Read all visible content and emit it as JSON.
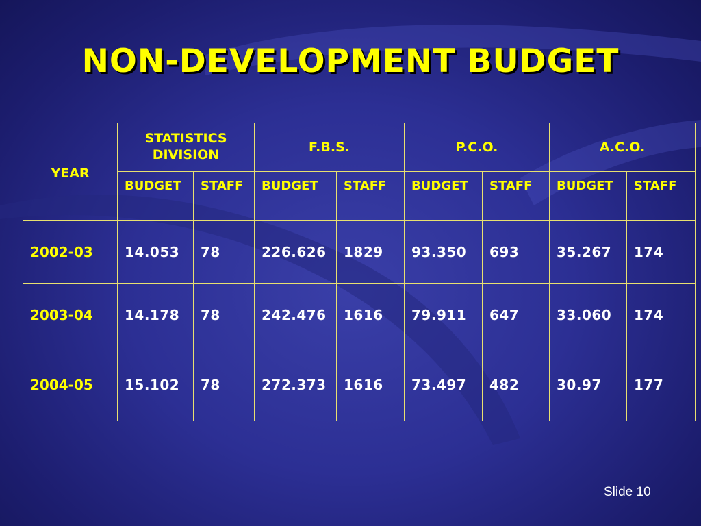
{
  "slide": {
    "title": "NON-DEVELOPMENT BUDGET",
    "slide_number": "Slide 10",
    "colors": {
      "title": "#ffff00",
      "header_text": "#ffff00",
      "value_text": "#ffffff",
      "grid": "#e8e070",
      "background": "#2c2f94"
    }
  },
  "table": {
    "year_header": "YEAR",
    "groups": [
      {
        "line1": "STATISTICS",
        "line2": "DIVISION"
      },
      {
        "line1": "F.B.S.",
        "line2": ""
      },
      {
        "line1": "P.C.O.",
        "line2": ""
      },
      {
        "line1": "A.C.O.",
        "line2": ""
      }
    ],
    "sub_budget": "BUDGET",
    "sub_staff": "STAFF",
    "rows": [
      {
        "year": "2002-03",
        "v": [
          "14.053",
          "78",
          "226.626",
          "1829",
          "93.350",
          "693",
          "35.267",
          "174"
        ]
      },
      {
        "year": "2003-04",
        "v": [
          "14.178",
          "78",
          "242.476",
          "1616",
          "79.911",
          "647",
          "33.060",
          "174"
        ]
      },
      {
        "year": "2004-05",
        "v": [
          "15.102",
          "78",
          "272.373",
          "1616",
          "73.497",
          "482",
          "30.97",
          "177"
        ]
      }
    ]
  }
}
